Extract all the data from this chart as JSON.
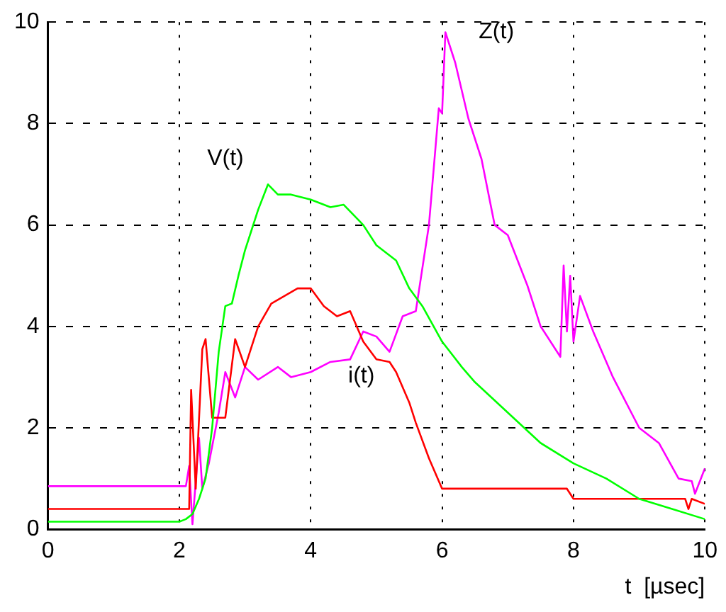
{
  "chart_data": {
    "type": "line",
    "xlabel": "t  [µsec]",
    "xlim": [
      0,
      10
    ],
    "xticks": [
      0,
      2,
      4,
      6,
      8,
      10
    ],
    "ylim": [
      0,
      10
    ],
    "yticks": [
      0,
      2,
      4,
      6,
      8,
      10
    ],
    "grid": true,
    "legend": false,
    "line_style": "solid",
    "marker": "none",
    "series": [
      {
        "name": "V(t)",
        "color": "#00ff00",
        "x": [
          0,
          2,
          2.1,
          2.2,
          2.3,
          2.4,
          2.5,
          2.6,
          2.7,
          2.8,
          2.9,
          3.0,
          3.1,
          3.2,
          3.35,
          3.5,
          3.7,
          4.0,
          4.3,
          4.5,
          4.8,
          5.0,
          5.3,
          5.5,
          5.7,
          6.0,
          6.3,
          6.5,
          7.0,
          7.5,
          8.0,
          8.5,
          9.0,
          9.5,
          10
        ],
        "values": [
          0.15,
          0.15,
          0.2,
          0.3,
          0.6,
          1.0,
          2.0,
          3.5,
          4.4,
          4.45,
          5.0,
          5.5,
          5.9,
          6.3,
          6.8,
          6.6,
          6.6,
          6.5,
          6.35,
          6.4,
          6.0,
          5.6,
          5.3,
          4.75,
          4.4,
          3.7,
          3.2,
          2.9,
          2.3,
          1.7,
          1.3,
          1.0,
          0.6,
          0.4,
          0.2
        ]
      },
      {
        "name": "i(t)",
        "color": "#ff0000",
        "x": [
          0,
          2.15,
          2.18,
          2.25,
          2.35,
          2.4,
          2.5,
          2.7,
          2.85,
          3.0,
          3.2,
          3.4,
          3.6,
          3.8,
          4.0,
          4.2,
          4.4,
          4.6,
          4.8,
          5.0,
          5.2,
          5.3,
          5.5,
          5.6,
          5.8,
          6.0,
          7.9,
          8.0,
          9.7,
          9.75,
          9.8,
          10
        ],
        "values": [
          0.4,
          0.4,
          2.75,
          0.8,
          3.55,
          3.75,
          2.2,
          2.2,
          3.75,
          3.2,
          4.0,
          4.45,
          4.6,
          4.75,
          4.75,
          4.4,
          4.2,
          4.3,
          3.7,
          3.35,
          3.3,
          3.1,
          2.5,
          2.1,
          1.4,
          0.8,
          0.8,
          0.6,
          0.6,
          0.4,
          0.6,
          0.5
        ]
      },
      {
        "name": "Z(t)",
        "color": "#ff00ff",
        "x": [
          0,
          2.1,
          2.15,
          2.2,
          2.3,
          2.35,
          2.45,
          2.6,
          2.7,
          2.85,
          3.0,
          3.2,
          3.5,
          3.7,
          4.0,
          4.3,
          4.6,
          4.8,
          5.0,
          5.2,
          5.4,
          5.6,
          5.8,
          5.95,
          6.0,
          6.05,
          6.2,
          6.4,
          6.6,
          6.8,
          7.0,
          7.3,
          7.5,
          7.8,
          7.85,
          7.9,
          7.95,
          8.0,
          8.1,
          8.3,
          8.6,
          9.0,
          9.3,
          9.6,
          9.8,
          9.85,
          10
        ],
        "values": [
          0.85,
          0.85,
          1.25,
          0.1,
          1.8,
          0.8,
          1.3,
          2.3,
          3.1,
          2.6,
          3.2,
          2.95,
          3.2,
          3.0,
          3.1,
          3.3,
          3.35,
          3.9,
          3.8,
          3.5,
          4.2,
          4.3,
          6.0,
          8.3,
          8.2,
          9.8,
          9.2,
          8.1,
          7.3,
          6.0,
          5.8,
          4.8,
          4.0,
          3.4,
          5.2,
          3.9,
          5.0,
          3.7,
          4.6,
          3.9,
          3.0,
          2.0,
          1.7,
          1.0,
          0.95,
          0.7,
          1.2
        ]
      }
    ]
  }
}
